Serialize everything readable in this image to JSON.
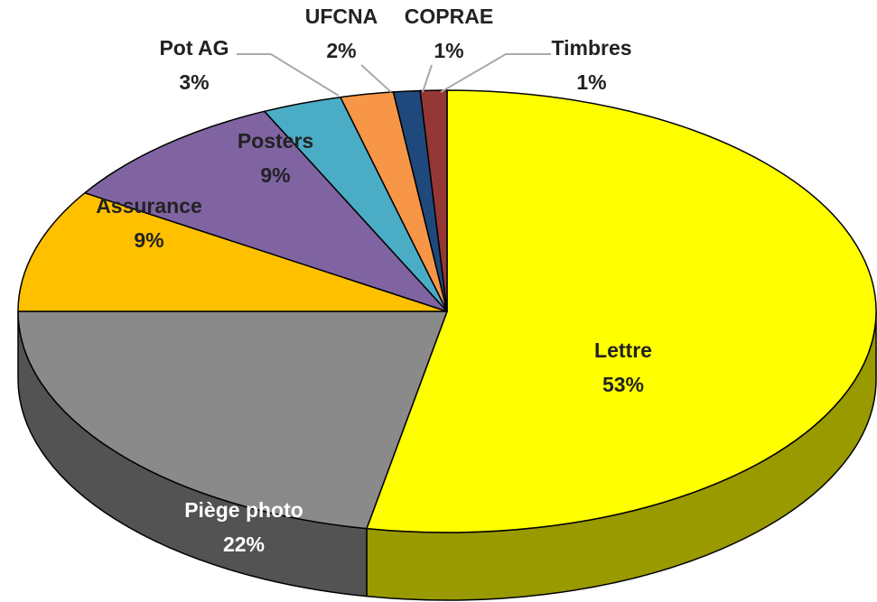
{
  "chart_data": {
    "type": "pie",
    "three_d": true,
    "categories": [
      "Lettre",
      "Piège photo",
      "Assurance",
      "Posters",
      "Pot AG",
      "UFCNA",
      "COPRAE",
      "Timbres"
    ],
    "values": [
      53,
      22,
      9,
      9,
      3,
      2,
      1,
      1
    ],
    "value_labels": [
      "53%",
      "22%",
      "9%",
      "9%",
      "3%",
      "2%",
      "1%",
      "1%"
    ],
    "colors": [
      "#ffff00",
      "#8a8a8a",
      "#ffc000",
      "#8064a2",
      "#4bacc6",
      "#f79646",
      "#1f497d",
      "#953735"
    ]
  }
}
